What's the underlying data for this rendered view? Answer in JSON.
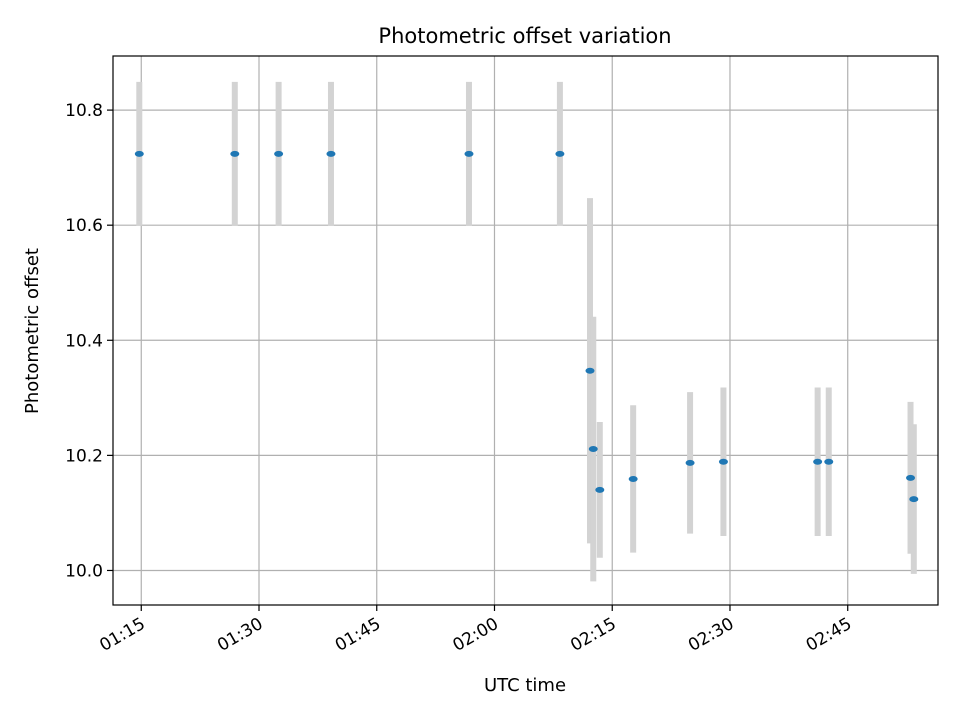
{
  "chart_data": {
    "type": "scatter",
    "title": "Photometric offset variation",
    "xlabel": "UTC time",
    "ylabel": "Photometric offset",
    "xlim": [
      "01:11:24",
      "02:56:30"
    ],
    "ylim": [
      9.94,
      10.894
    ],
    "grid": true,
    "xticks": [
      "01:15",
      "01:30",
      "01:45",
      "02:00",
      "02:15",
      "02:30",
      "02:45"
    ],
    "yticks": [
      10.0,
      10.2,
      10.4,
      10.6,
      10.8
    ],
    "ytick_labels": [
      "10.0",
      "10.2",
      "10.4",
      "10.6",
      "10.8"
    ],
    "colors": {
      "point": "#1f77b4",
      "errorbar": "#d3d3d3",
      "grid": "#b0b0b0"
    },
    "points": [
      {
        "x": "01:14:45",
        "y": 10.724,
        "yerr": 0.125
      },
      {
        "x": "01:26:55",
        "y": 10.724,
        "yerr": 0.125
      },
      {
        "x": "01:32:30",
        "y": 10.724,
        "yerr": 0.125
      },
      {
        "x": "01:39:10",
        "y": 10.724,
        "yerr": 0.125
      },
      {
        "x": "01:56:45",
        "y": 10.724,
        "yerr": 0.125
      },
      {
        "x": "02:08:20",
        "y": 10.724,
        "yerr": 0.125
      },
      {
        "x": "02:12:10",
        "y": 10.347,
        "yerr": 0.3
      },
      {
        "x": "02:12:35",
        "y": 10.211,
        "yerr": 0.23
      },
      {
        "x": "02:13:25",
        "y": 10.14,
        "yerr": 0.118
      },
      {
        "x": "02:17:40",
        "y": 10.159,
        "yerr": 0.128
      },
      {
        "x": "02:24:55",
        "y": 10.187,
        "yerr": 0.123
      },
      {
        "x": "02:29:10",
        "y": 10.189,
        "yerr": 0.129
      },
      {
        "x": "02:41:10",
        "y": 10.189,
        "yerr": 0.129
      },
      {
        "x": "02:42:35",
        "y": 10.189,
        "yerr": 0.129
      },
      {
        "x": "02:53:00",
        "y": 10.161,
        "yerr": 0.132
      },
      {
        "x": "02:53:25",
        "y": 10.124,
        "yerr": 0.13
      }
    ]
  }
}
